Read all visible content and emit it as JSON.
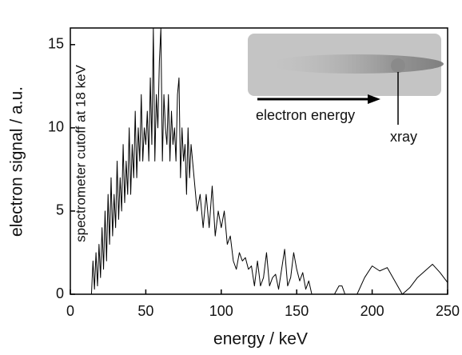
{
  "chart_data": {
    "type": "line",
    "x_label": "energy / keV",
    "y_label": "electron signal / a.u.",
    "annotation": "spectrometer cutoff at 18 keV",
    "inset_labels": [
      "electron energy",
      "xray"
    ],
    "x": [
      14,
      15,
      16,
      17,
      18,
      19,
      20,
      21,
      22,
      23,
      24,
      25,
      26,
      27,
      28,
      29,
      30,
      31,
      32,
      33,
      34,
      35,
      36,
      37,
      38,
      39,
      40,
      41,
      42,
      43,
      44,
      45,
      46,
      47,
      48,
      49,
      50,
      51,
      52,
      53,
      54,
      55,
      56,
      57,
      58,
      59,
      60,
      61,
      62,
      63,
      64,
      65,
      66,
      67,
      68,
      69,
      70,
      71,
      72,
      73,
      74,
      75,
      76,
      77,
      78,
      79,
      80,
      82,
      84,
      86,
      88,
      90,
      92,
      94,
      96,
      98,
      100,
      102,
      104,
      106,
      108,
      110,
      112,
      114,
      116,
      118,
      120,
      122,
      124,
      126,
      128,
      130,
      132,
      134,
      136,
      138,
      140,
      142,
      144,
      146,
      148,
      150,
      152,
      154,
      156,
      158,
      160,
      165,
      170,
      175,
      178,
      180,
      182,
      185,
      190,
      195,
      200,
      205,
      210,
      215,
      220,
      225,
      230,
      235,
      240,
      245,
      250
    ],
    "series": [
      {
        "color": "#000000",
        "values": [
          0,
          2,
          0.3,
          2.5,
          0.5,
          3,
          1,
          4,
          1.5,
          5,
          2,
          6,
          3,
          7,
          3.5,
          6,
          4,
          8,
          4.5,
          7,
          5,
          9,
          5.5,
          8,
          6,
          10,
          6,
          9,
          7,
          11,
          7,
          10,
          8,
          12,
          8,
          10,
          9,
          11,
          8,
          13,
          9,
          16,
          8,
          12,
          10,
          14,
          16,
          8,
          12,
          10,
          9,
          12,
          8,
          11,
          9,
          10,
          8,
          12,
          13,
          7,
          10,
          8,
          9,
          6,
          10,
          7,
          9,
          7,
          5,
          6,
          4,
          6,
          4,
          6.5,
          3.5,
          5,
          4,
          5,
          3,
          3.5,
          2,
          1.5,
          2.5,
          2,
          2.2,
          1.5,
          1.7,
          0.5,
          2,
          0.5,
          1,
          2.5,
          0.5,
          1,
          1.2,
          0.3,
          1.5,
          2.7,
          0.5,
          1,
          2.5,
          1.5,
          0.8,
          1.3,
          0.3,
          0.8,
          0,
          0,
          0,
          0,
          0.5,
          0.5,
          0,
          0,
          0,
          1,
          1.7,
          1.4,
          1.6,
          0.8,
          0,
          0.4,
          1,
          1.4,
          1.8,
          1.3,
          0.7
        ]
      }
    ],
    "xlim": [
      0,
      250
    ],
    "xticks": [
      0,
      50,
      100,
      150,
      200,
      250
    ],
    "ylim": [
      0,
      16
    ],
    "yticks": [
      0,
      5,
      10,
      15
    ]
  }
}
